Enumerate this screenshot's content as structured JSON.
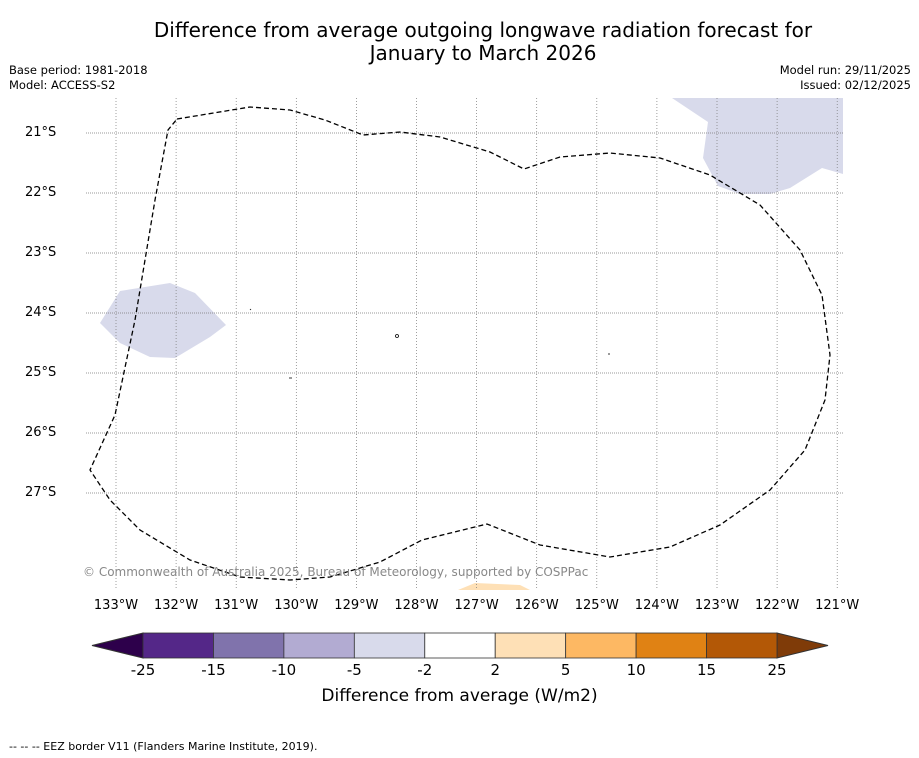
{
  "title_line1": "Difference from average outgoing longwave radiation forecast for",
  "title_line2": "January to March 2026",
  "base_period": "Base period: 1981-2018",
  "model": "Model: ACCESS-S2",
  "model_run": "Model run: 29/11/2025",
  "issued": "Issued: 02/12/2025",
  "copyright": "© Commonwealth of Australia 2025, Bureau of Meteorology, supported by COSPPac",
  "lat_labels": [
    "21°S",
    "22°S",
    "23°S",
    "24°S",
    "25°S",
    "26°S",
    "27°S"
  ],
  "lon_labels": [
    "133°W",
    "132°W",
    "131°W",
    "130°W",
    "129°W",
    "128°W",
    "127°W",
    "126°W",
    "125°W",
    "124°W",
    "123°W",
    "122°W",
    "121°W"
  ],
  "colorbar": {
    "label": "Difference from average (W/m2)",
    "ticks": [
      "-25",
      "-15",
      "-10",
      "-5",
      "-2",
      "2",
      "5",
      "10",
      "15",
      "25"
    ],
    "colors": [
      "#542788",
      "#8073ac",
      "#b2abd2",
      "#d8daeb",
      "#ffffff",
      "#fee0b6",
      "#fdb863",
      "#e08214",
      "#b35806"
    ],
    "under_color": "#2d004b",
    "over_color": "#7f3b08"
  },
  "legend_note": "--  --  -- EEZ border V11 (Flanders Marine Institute, 2019)."
}
